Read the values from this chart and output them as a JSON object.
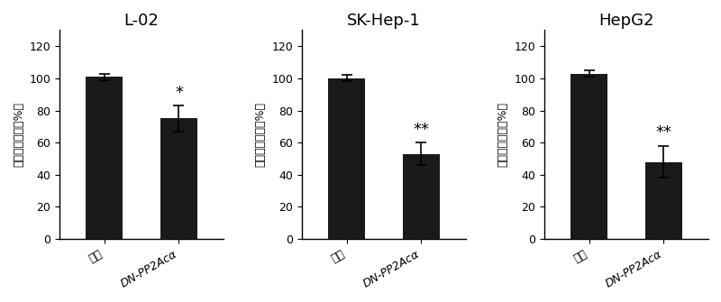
{
  "subplots": [
    {
      "title": "L-02",
      "categories": [
        "对照",
        "DN-PP2Acα"
      ],
      "values": [
        101,
        75
      ],
      "errors": [
        2,
        8
      ],
      "significance": [
        "",
        "*"
      ]
    },
    {
      "title": "SK-Hep-1",
      "categories": [
        "对照",
        "DN-PP2Acα"
      ],
      "values": [
        100,
        53
      ],
      "errors": [
        2,
        7
      ],
      "significance": [
        "",
        "**"
      ]
    },
    {
      "title": "HepG2",
      "categories": [
        "对照",
        "DN-PP2Acα"
      ],
      "values": [
        103,
        48
      ],
      "errors": [
        2,
        10
      ],
      "significance": [
        "",
        "**"
      ]
    }
  ],
  "bar_color": "#1a1a1a",
  "bar_width": 0.5,
  "ylim": [
    0,
    130
  ],
  "yticks": [
    0,
    20,
    40,
    60,
    80,
    100,
    120
  ],
  "ylabel": "相对细胞活力（%）",
  "ylabel_fontsize": 9,
  "title_fontsize": 13,
  "tick_fontsize": 9,
  "xtick_fontsize": 9,
  "sig_fontsize": 13,
  "figsize": [
    8.0,
    3.35
  ],
  "dpi": 100
}
